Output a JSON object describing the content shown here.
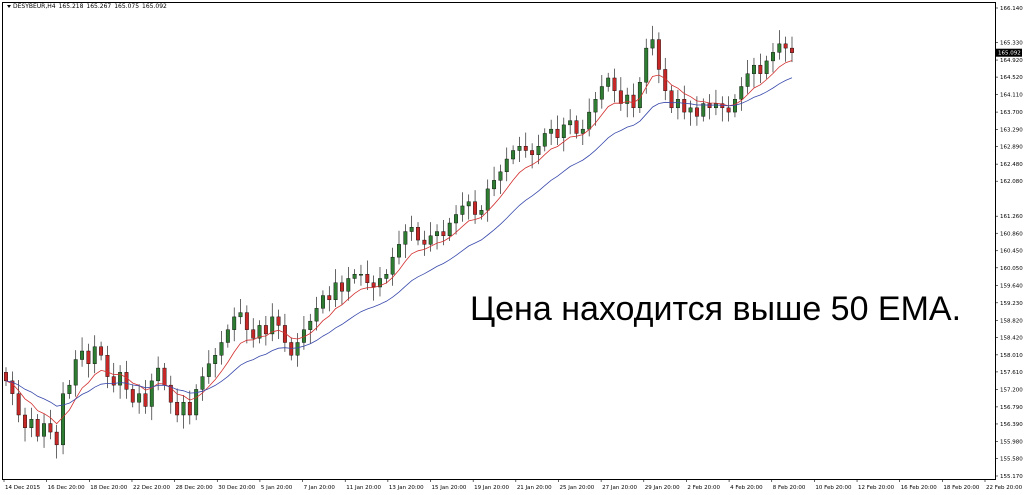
{
  "header": {
    "symbol_timeframe": "DESYBEUR,H4",
    "open": "165.218",
    "high": "165.267",
    "low": "165.075",
    "close": "165.092"
  },
  "annotation": "Цена находится выше 50 EMA.",
  "colors": {
    "bull": "#2e7d32",
    "bear": "#c62828",
    "ema_fast": "#d32f2f",
    "ema_slow": "#3949ab"
  },
  "chart_data": {
    "type": "candlestick",
    "ylim": [
      155.17,
      166.14
    ],
    "y_ticks": [
      "166.140",
      "165.330",
      "164.920",
      "164.520",
      "164.110",
      "163.700",
      "163.290",
      "162.890",
      "162.480",
      "162.080",
      "161.260",
      "160.860",
      "160.450",
      "160.050",
      "159.640",
      "159.230",
      "158.820",
      "158.420",
      "158.010",
      "157.610",
      "157.200",
      "156.790",
      "156.390",
      "155.980",
      "155.580",
      "155.170"
    ],
    "current_price": "165.092",
    "x_labels": [
      "14 Dec 2015",
      "16 Dec 20:00",
      "18 Dec 20:00",
      "22 Dec 20:00",
      "28 Dec 20:00",
      "30 Dec 20:00",
      "5 Jan 20:00",
      "7 Jan 20:00",
      "11 Jan 20:00",
      "13 Jan 20:00",
      "15 Jan 20:00",
      "19 Jan 20:00",
      "21 Jan 20:00",
      "25 Jan 20:00",
      "27 Jan 20:00",
      "29 Jan 20:00",
      "2 Feb 20:00",
      "4 Feb 20:00",
      "8 Feb 20:00",
      "10 Feb 20:00",
      "12 Feb 20:00",
      "16 Feb 20:00",
      "18 Feb 20:00",
      "22 Feb 20:00"
    ],
    "closes": [
      157.4,
      157.1,
      156.6,
      156.3,
      156.5,
      156.1,
      156.4,
      156.2,
      155.9,
      157.1,
      157.3,
      157.9,
      158.1,
      157.8,
      158.2,
      158.0,
      157.5,
      157.3,
      157.6,
      157.2,
      156.9,
      157.1,
      156.8,
      157.4,
      157.7,
      157.3,
      156.9,
      156.6,
      156.9,
      156.6,
      157.2,
      157.5,
      157.8,
      158.0,
      158.3,
      158.6,
      158.9,
      159.0,
      158.6,
      158.4,
      158.7,
      158.5,
      158.9,
      158.7,
      158.3,
      158.0,
      158.3,
      158.6,
      158.8,
      159.1,
      159.4,
      159.3,
      159.7,
      159.5,
      159.8,
      159.9,
      159.9,
      159.7,
      159.6,
      159.8,
      159.9,
      160.3,
      160.6,
      160.9,
      161.0,
      160.7,
      160.6,
      160.8,
      160.9,
      160.8,
      161.1,
      161.3,
      161.5,
      161.6,
      161.3,
      161.4,
      161.9,
      162.1,
      162.3,
      162.6,
      162.8,
      162.9,
      162.8,
      162.7,
      162.9,
      163.2,
      163.3,
      163.1,
      163.4,
      163.5,
      163.2,
      163.3,
      163.7,
      164.0,
      164.3,
      164.5,
      164.2,
      163.9,
      164.1,
      163.8,
      164.4,
      165.2,
      165.4,
      164.7,
      164.2,
      163.8,
      164.0,
      163.7,
      163.8,
      163.6,
      163.9,
      163.8,
      163.9,
      163.8,
      163.7,
      164.0,
      164.3,
      164.6,
      164.8,
      164.6,
      164.9,
      165.1,
      165.3,
      165.2,
      165.092
    ]
  }
}
